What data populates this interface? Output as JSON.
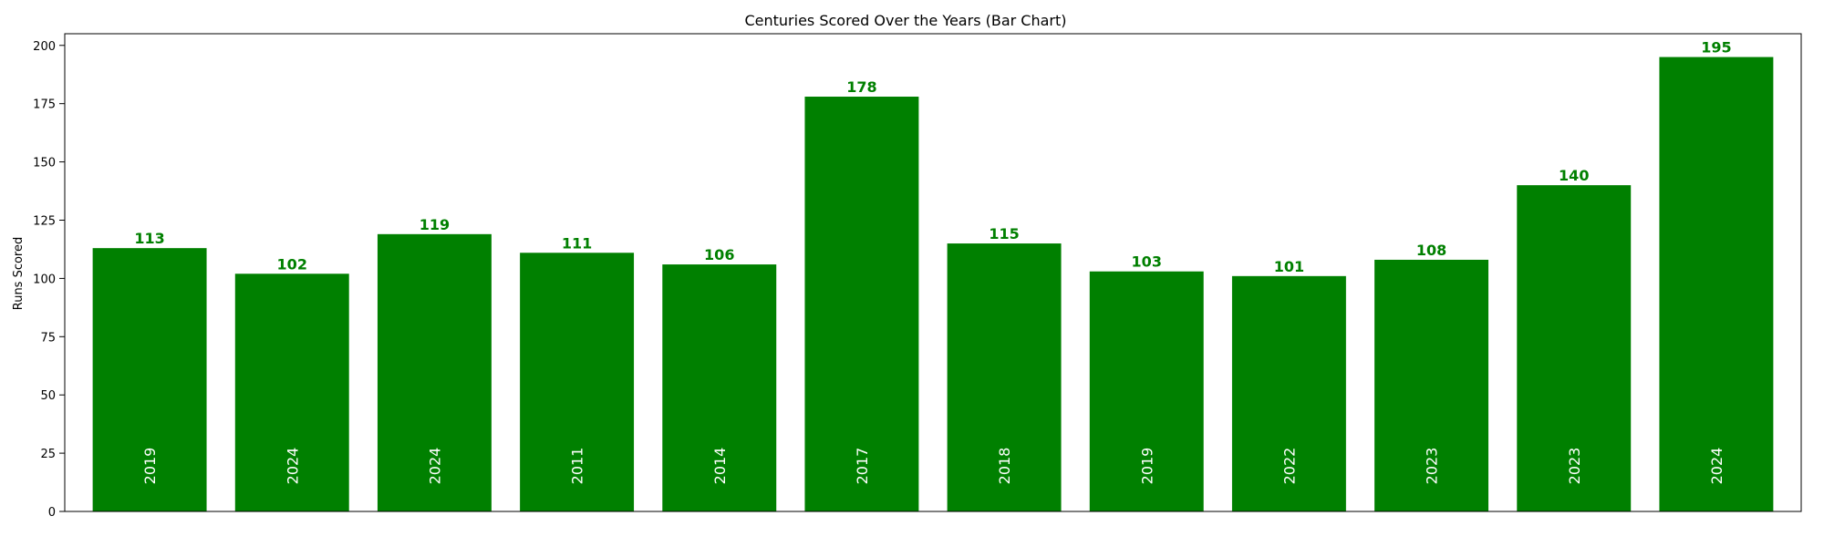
{
  "chart_data": {
    "type": "bar",
    "title": "Centuries Scored Over the Years (Bar Chart)",
    "xlabel": "",
    "ylabel": "Runs Scored",
    "ylim": [
      0,
      205
    ],
    "yticks": [
      0,
      25,
      50,
      75,
      100,
      125,
      150,
      175,
      200
    ],
    "categories": [
      "2019",
      "2024",
      "2024",
      "2011",
      "2014",
      "2017",
      "2018",
      "2019",
      "2022",
      "2023",
      "2023",
      "2024"
    ],
    "values": [
      113,
      102,
      119,
      111,
      106,
      178,
      115,
      103,
      101,
      108,
      140,
      195
    ],
    "bar_color": "#008000",
    "label_color": "#008000",
    "year_label_color": "#ffffff",
    "grid": false,
    "legend": "none"
  }
}
